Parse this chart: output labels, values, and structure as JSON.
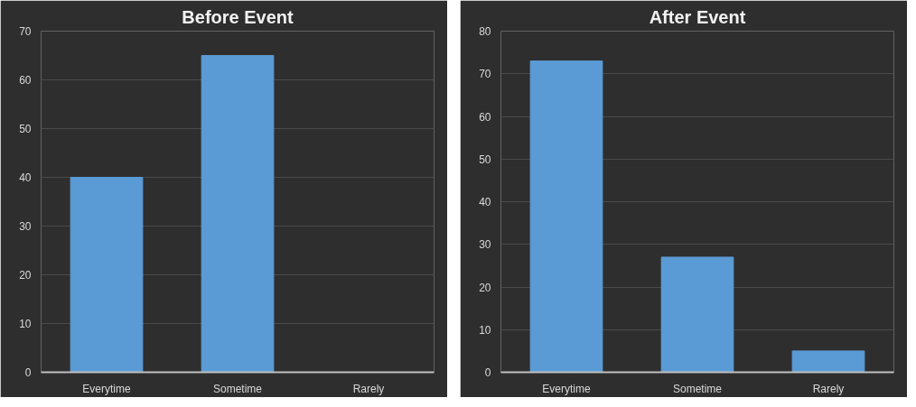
{
  "chart_data": [
    {
      "type": "bar",
      "title": "Before Event",
      "categories": [
        "Everytime",
        "Sometime",
        "Rarely"
      ],
      "values": [
        40,
        65,
        0
      ],
      "color": "#5b9bd5",
      "ylim": [
        0,
        70
      ],
      "yticks": [
        0,
        10,
        20,
        30,
        40,
        50,
        60,
        70
      ],
      "grid": "y"
    },
    {
      "type": "bar",
      "title": "After Event",
      "categories": [
        "Everytime",
        "Sometime",
        "Rarely"
      ],
      "values": [
        73,
        27,
        5
      ],
      "color": "#5b9bd5",
      "ylim": [
        0,
        80
      ],
      "yticks": [
        0,
        10,
        20,
        30,
        40,
        50,
        60,
        70,
        80
      ],
      "grid": "y"
    }
  ]
}
